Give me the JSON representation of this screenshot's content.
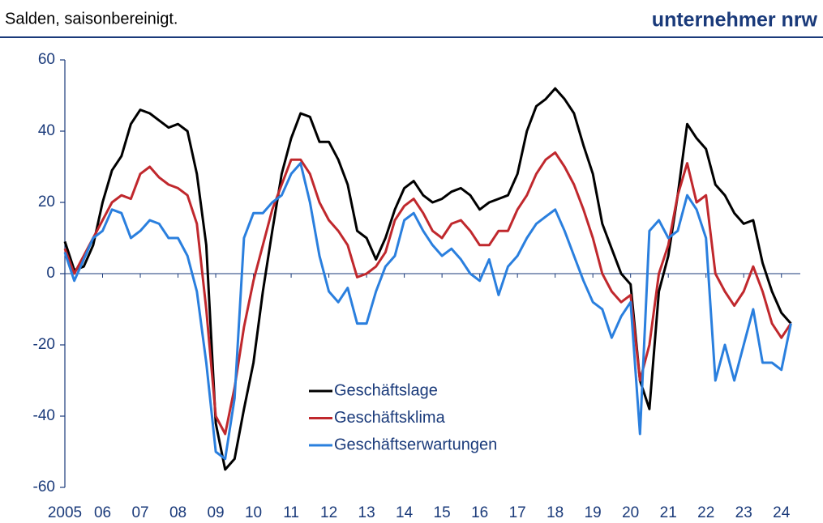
{
  "chart_data": {
    "type": "line",
    "title": "Salden, saisonbereinigt.",
    "brand": "unternehmer nrw",
    "x": [
      2005,
      2005.25,
      2005.5,
      2005.75,
      2006,
      2006.25,
      2006.5,
      2006.75,
      2007,
      2007.25,
      2007.5,
      2007.75,
      2008,
      2008.25,
      2008.5,
      2008.75,
      2009,
      2009.25,
      2009.5,
      2009.75,
      2010,
      2010.25,
      2010.5,
      2010.75,
      2011,
      2011.25,
      2011.5,
      2011.75,
      2012,
      2012.25,
      2012.5,
      2012.75,
      2013,
      2013.25,
      2013.5,
      2013.75,
      2014,
      2014.25,
      2014.5,
      2014.75,
      2015,
      2015.25,
      2015.5,
      2015.75,
      2016,
      2016.25,
      2016.5,
      2016.75,
      2017,
      2017.25,
      2017.5,
      2017.75,
      2018,
      2018.25,
      2018.5,
      2018.75,
      2019,
      2019.25,
      2019.5,
      2019.75,
      2020,
      2020.25,
      2020.5,
      2020.75,
      2021,
      2021.25,
      2021.5,
      2021.75,
      2022,
      2022.25,
      2022.5,
      2022.75,
      2023,
      2023.25,
      2023.5,
      2023.75,
      2024,
      2024.25
    ],
    "series": [
      {
        "name": "Geschäftslage",
        "color": "#000000",
        "values": [
          9,
          1,
          2,
          8,
          20,
          29,
          33,
          42,
          46,
          45,
          43,
          41,
          42,
          40,
          28,
          8,
          -42,
          -55,
          -52,
          -38,
          -25,
          -5,
          12,
          28,
          38,
          45,
          44,
          37,
          37,
          32,
          25,
          12,
          10,
          4,
          10,
          18,
          24,
          26,
          22,
          20,
          21,
          23,
          24,
          22,
          18,
          20,
          21,
          22,
          28,
          40,
          47,
          49,
          52,
          49,
          45,
          36,
          28,
          14,
          7,
          0,
          -3,
          -30,
          -38,
          -5,
          5,
          22,
          42,
          38,
          35,
          25,
          22,
          17,
          14,
          15,
          3,
          -5,
          -11,
          -14
        ]
      },
      {
        "name": "Geschäftsklima",
        "color": "#c0282d",
        "values": [
          7,
          0,
          5,
          10,
          15,
          20,
          22,
          21,
          28,
          30,
          27,
          25,
          24,
          22,
          14,
          -10,
          -40,
          -45,
          -32,
          -15,
          -2,
          8,
          18,
          25,
          32,
          32,
          28,
          20,
          15,
          12,
          8,
          -1,
          0,
          2,
          6,
          15,
          19,
          21,
          17,
          12,
          10,
          14,
          15,
          12,
          8,
          8,
          12,
          12,
          18,
          22,
          28,
          32,
          34,
          30,
          25,
          18,
          10,
          0,
          -5,
          -8,
          -6,
          -30,
          -20,
          0,
          8,
          22,
          31,
          20,
          22,
          0,
          -5,
          -9,
          -5,
          2,
          -5,
          -14,
          -18,
          -14
        ]
      },
      {
        "name": "Geschäftserwartungen",
        "color": "#2a7fde",
        "values": [
          6,
          -2,
          4,
          10,
          12,
          18,
          17,
          10,
          12,
          15,
          14,
          10,
          10,
          5,
          -5,
          -25,
          -50,
          -52,
          -35,
          10,
          17,
          17,
          20,
          22,
          28,
          31,
          20,
          5,
          -5,
          -8,
          -4,
          -14,
          -14,
          -5,
          2,
          5,
          15,
          17,
          12,
          8,
          5,
          7,
          4,
          0,
          -2,
          4,
          -6,
          2,
          5,
          10,
          14,
          16,
          18,
          12,
          5,
          -2,
          -8,
          -10,
          -18,
          -12,
          -8,
          -45,
          12,
          15,
          10,
          12,
          22,
          18,
          10,
          -30,
          -20,
          -30,
          -20,
          -10,
          -25,
          -25,
          -27,
          -14
        ]
      }
    ],
    "xlim": [
      2005,
      2024.5
    ],
    "xticks": [
      {
        "value": 2005,
        "label": "2005"
      },
      {
        "value": 2006,
        "label": "06"
      },
      {
        "value": 2007,
        "label": "07"
      },
      {
        "value": 2008,
        "label": "08"
      },
      {
        "value": 2009,
        "label": "09"
      },
      {
        "value": 2010,
        "label": "10"
      },
      {
        "value": 2011,
        "label": "11"
      },
      {
        "value": 2012,
        "label": "12"
      },
      {
        "value": 2013,
        "label": "13"
      },
      {
        "value": 2014,
        "label": "14"
      },
      {
        "value": 2015,
        "label": "15"
      },
      {
        "value": 2016,
        "label": "16"
      },
      {
        "value": 2017,
        "label": "17"
      },
      {
        "value": 2018,
        "label": "18"
      },
      {
        "value": 2019,
        "label": "19"
      },
      {
        "value": 2020,
        "label": "20"
      },
      {
        "value": 2021,
        "label": "21"
      },
      {
        "value": 2022,
        "label": "22"
      },
      {
        "value": 2023,
        "label": "23"
      },
      {
        "value": 2024,
        "label": "24"
      }
    ],
    "ylim": [
      -60,
      60
    ],
    "yticks": [
      -60,
      -40,
      -20,
      0,
      20,
      40,
      60
    ]
  }
}
